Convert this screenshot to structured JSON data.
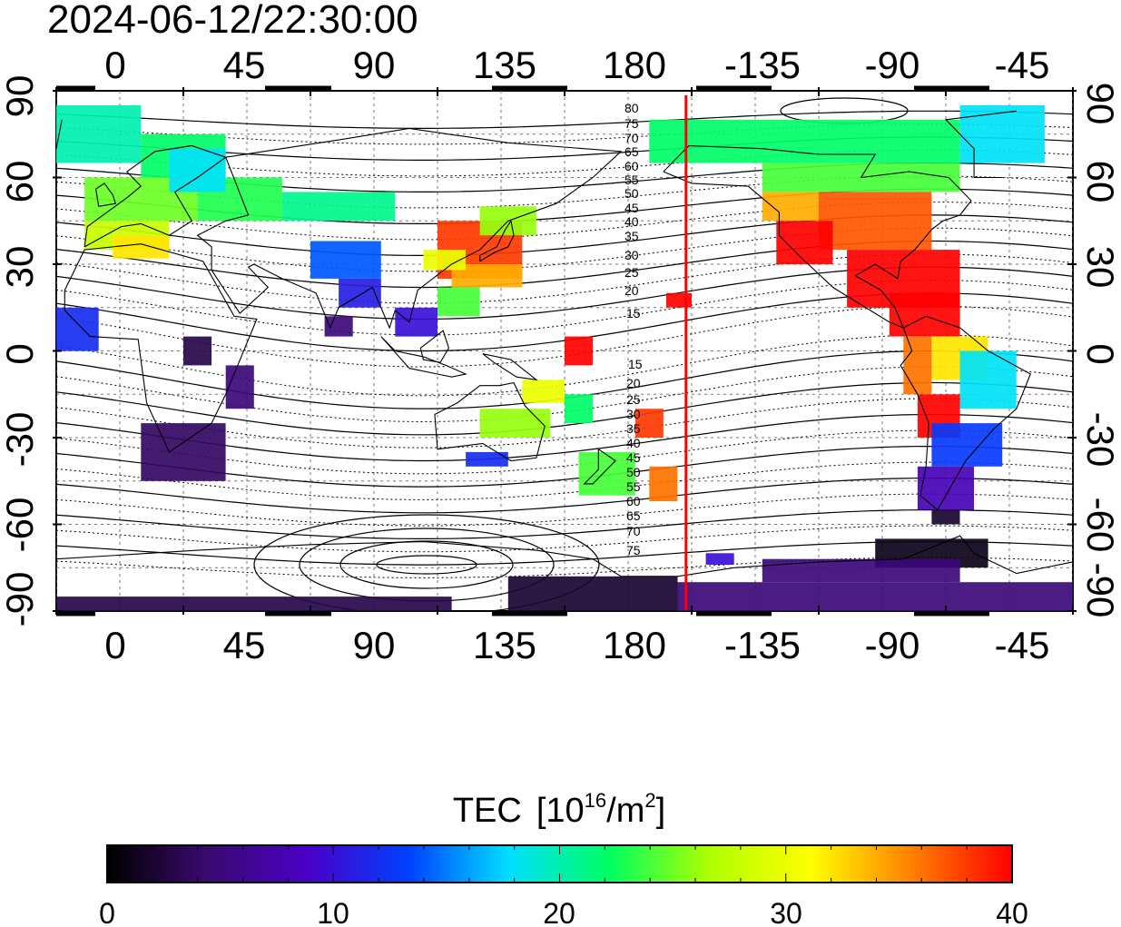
{
  "timestamp": "2024-06-12/22:30:00",
  "map": {
    "lon_ticks": [
      "0",
      "45",
      "90",
      "135",
      "180",
      "-135",
      "-90",
      "-45"
    ],
    "lat_ticks": [
      "90",
      "60",
      "30",
      "0",
      "-30",
      "-60",
      "-90"
    ],
    "contour_labels_north": [
      "80",
      "75",
      "70",
      "65",
      "60",
      "55",
      "50",
      "45",
      "40",
      "35",
      "30",
      "25",
      "20",
      "15"
    ],
    "contour_labels_south": [
      "15",
      "20",
      "25",
      "30",
      "35",
      "40",
      "45",
      "50",
      "55",
      "60",
      "65",
      "70",
      "75"
    ],
    "marker_line": {
      "longitude": -157,
      "color": "#ff0000"
    },
    "colors": {
      "frame": "#000000",
      "grid": "#555555"
    }
  },
  "colorbar": {
    "title": "TEC",
    "unit_base": "[10",
    "unit_exp": "16",
    "unit_mid": "/m",
    "unit_exp2": "2",
    "unit_close": "]",
    "min": 0,
    "max": 40,
    "tick_labels": [
      "0",
      "10",
      "20",
      "30",
      "40"
    ],
    "stops": [
      "#000000",
      "#3a0a6e",
      "#4a00c8",
      "#0040ff",
      "#00e0ff",
      "#00ff60",
      "#b0ff00",
      "#ffff00",
      "#ff8000",
      "#ff0000"
    ]
  }
}
